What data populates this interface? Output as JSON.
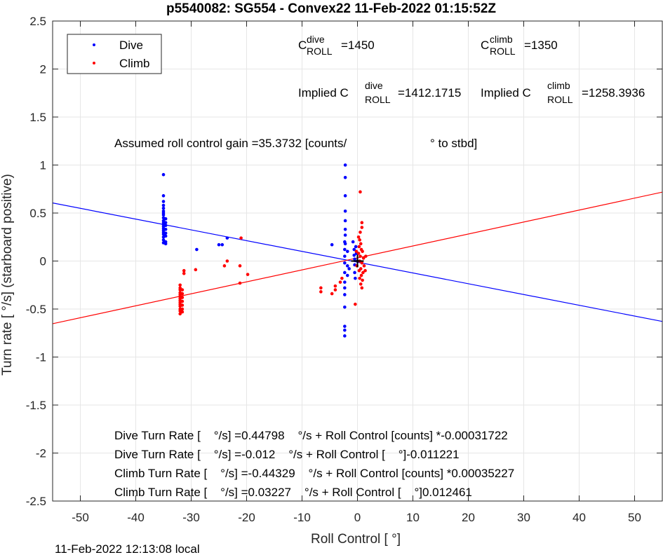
{
  "chart_data": {
    "type": "scatter",
    "title": "p5540082: SG554 - Convex22 11-Feb-2022 01:15:52Z",
    "xlabel": "Roll Control [   °]",
    "ylabel": "Turn rate [   °/s] (starboard positive)",
    "xlim": [
      -55,
      55
    ],
    "ylim": [
      -2.5,
      2.5
    ],
    "xticks": [
      -50,
      -40,
      -30,
      -20,
      -10,
      0,
      10,
      20,
      30,
      40,
      50
    ],
    "yticks": [
      -2.5,
      -2,
      -1.5,
      -1,
      -0.5,
      0,
      0.5,
      1,
      1.5,
      2,
      2.5
    ],
    "xtick_labels": [
      "-50",
      "-40",
      "-30",
      "-20",
      "-10",
      "0",
      "10",
      "20",
      "30",
      "40",
      "50"
    ],
    "ytick_labels": [
      "-2.5",
      "-2",
      "-1.5",
      "-1",
      "-0.5",
      "0",
      "0.5",
      "1",
      "1.5",
      "2",
      "2.5"
    ],
    "grid": true,
    "legend_position": "top-left",
    "series": [
      {
        "name": "Dive",
        "color": "#0000ff",
        "points": [
          [
            -35,
            0.9
          ],
          [
            -35,
            0.68
          ],
          [
            -35,
            0.62
          ],
          [
            -35,
            0.58
          ],
          [
            -35,
            0.55
          ],
          [
            -35,
            0.52
          ],
          [
            -35,
            0.5
          ],
          [
            -35,
            0.48
          ],
          [
            -35,
            0.45
          ],
          [
            -35,
            0.42
          ],
          [
            -35,
            0.4
          ],
          [
            -35,
            0.38
          ],
          [
            -35,
            0.36
          ],
          [
            -35,
            0.34
          ],
          [
            -35,
            0.32
          ],
          [
            -35,
            0.3
          ],
          [
            -35,
            0.28
          ],
          [
            -35,
            0.25
          ],
          [
            -35,
            0.22
          ],
          [
            -35,
            0.19
          ],
          [
            -34.6,
            0.44
          ],
          [
            -34.6,
            0.4
          ],
          [
            -34.6,
            0.37
          ],
          [
            -34.6,
            0.33
          ],
          [
            -34.6,
            0.29
          ],
          [
            -34.6,
            0.26
          ],
          [
            -34.6,
            0.2
          ],
          [
            -34.6,
            0.18
          ],
          [
            -29,
            0.12
          ],
          [
            -25,
            0.17
          ],
          [
            -24.4,
            0.17
          ],
          [
            -23.5,
            0.24
          ],
          [
            -4.6,
            0.17
          ],
          [
            -2.3,
            0.2
          ],
          [
            -2.3,
            0.12
          ],
          [
            -2.3,
            0.05
          ],
          [
            -2.3,
            -0.02
          ],
          [
            -2.3,
            -0.12
          ],
          [
            -2.3,
            -0.22
          ],
          [
            -2.3,
            -0.28
          ],
          [
            -2.3,
            -0.35
          ],
          [
            -2.3,
            -0.48
          ],
          [
            -2.3,
            -0.68
          ],
          [
            -2.3,
            -0.72
          ],
          [
            -2.3,
            -0.78
          ],
          [
            -2.2,
            1.0
          ],
          [
            -2.2,
            0.87
          ],
          [
            -2.2,
            0.68
          ],
          [
            -2.2,
            0.52
          ],
          [
            -2.2,
            0.42
          ],
          [
            -2.2,
            0.33
          ],
          [
            -2.2,
            0.27
          ],
          [
            -2.2,
            0.18
          ],
          [
            -1.8,
            0.1
          ],
          [
            -1.8,
            -0.05
          ],
          [
            -1.8,
            -0.15
          ],
          [
            -1.5,
            -0.08
          ],
          [
            -0.8,
            0.2
          ],
          [
            -0.6,
            0.12
          ],
          [
            -0.6,
            0.06
          ],
          [
            -0.5,
            0.02
          ],
          [
            -0.5,
            -0.04
          ],
          [
            -0.5,
            -0.12
          ],
          [
            -0.4,
            -0.18
          ],
          [
            -0.3,
            0.15
          ],
          [
            -0.2,
            0.08
          ],
          [
            0,
            0.0
          ]
        ]
      },
      {
        "name": "Climb",
        "color": "#ff0000",
        "points": [
          [
            -32,
            -0.25
          ],
          [
            -32,
            -0.28
          ],
          [
            -32,
            -0.3
          ],
          [
            -32,
            -0.33
          ],
          [
            -32,
            -0.35
          ],
          [
            -32,
            -0.37
          ],
          [
            -32,
            -0.39
          ],
          [
            -32,
            -0.41
          ],
          [
            -32,
            -0.43
          ],
          [
            -32,
            -0.45
          ],
          [
            -32,
            -0.47
          ],
          [
            -32,
            -0.5
          ],
          [
            -32,
            -0.52
          ],
          [
            -32,
            -0.55
          ],
          [
            -31.6,
            -0.3
          ],
          [
            -31.6,
            -0.34
          ],
          [
            -31.6,
            -0.38
          ],
          [
            -31.6,
            -0.42
          ],
          [
            -31.6,
            -0.46
          ],
          [
            -31.6,
            -0.5
          ],
          [
            -31.6,
            -0.53
          ],
          [
            -31.3,
            -0.1
          ],
          [
            -31.3,
            -0.13
          ],
          [
            -29.2,
            -0.09
          ],
          [
            -24,
            -0.05
          ],
          [
            -23.5,
            0.0
          ],
          [
            -21.2,
            -0.05
          ],
          [
            -21.2,
            -0.23
          ],
          [
            -19.8,
            -0.14
          ],
          [
            -21,
            0.24
          ],
          [
            -6.6,
            -0.28
          ],
          [
            -6.6,
            -0.32
          ],
          [
            -4.6,
            -0.34
          ],
          [
            -4,
            -0.26
          ],
          [
            -4,
            -0.3
          ],
          [
            -3.1,
            -0.22
          ],
          [
            -2.8,
            -0.18
          ],
          [
            0.5,
            0.72
          ],
          [
            0.8,
            0.4
          ],
          [
            0.8,
            0.35
          ],
          [
            0.5,
            0.3
          ],
          [
            0.2,
            0.25
          ],
          [
            0.4,
            0.22
          ],
          [
            0.6,
            0.18
          ],
          [
            0.3,
            0.15
          ],
          [
            0.7,
            0.12
          ],
          [
            0.9,
            0.1
          ],
          [
            0.2,
            0.08
          ],
          [
            0.5,
            0.05
          ],
          [
            1.1,
            0.03
          ],
          [
            0.4,
            0.0
          ],
          [
            0.8,
            -0.02
          ],
          [
            1.2,
            -0.05
          ],
          [
            0.6,
            -0.08
          ],
          [
            0.3,
            -0.1
          ],
          [
            1.0,
            -0.12
          ],
          [
            0.7,
            -0.15
          ],
          [
            0.4,
            -0.18
          ],
          [
            0.9,
            -0.2
          ],
          [
            0.6,
            -0.24
          ],
          [
            0.8,
            -0.28
          ],
          [
            -0.4,
            -0.45
          ],
          [
            1.5,
            0.05
          ],
          [
            1.4,
            -0.1
          ],
          [
            -0.2,
            0.1
          ],
          [
            -0.1,
            -0.05
          ]
        ]
      }
    ],
    "fit_lines": [
      {
        "name": "Dive fit",
        "color": "#0000ff",
        "intercept": -0.012,
        "slope": -0.011221
      },
      {
        "name": "Climb fit",
        "color": "#ff0000",
        "intercept": 0.03227,
        "slope": 0.012461
      }
    ],
    "marker": {
      "x": 0,
      "y": 0,
      "symbol": "+"
    }
  },
  "legend": {
    "dive": "Dive",
    "climb": "Climb"
  },
  "annotations": {
    "c_dive_main": "C",
    "c_dive_sup": "dive",
    "c_dive_sub": "ROLL",
    "c_dive_val": "=1450",
    "c_climb_main": "C",
    "c_climb_sup": "climb",
    "c_climb_sub": "ROLL",
    "c_climb_val": "=1350",
    "imp_dive_main": "Implied C",
    "imp_dive_sup": "dive",
    "imp_dive_sub": "ROLL",
    "imp_dive_val": "=1412.1715",
    "imp_climb_main": "Implied C",
    "imp_climb_sup": "climb",
    "imp_climb_sub": "ROLL",
    "imp_climb_val": "=1258.3936",
    "gain_a": "Assumed roll control gain =35.3732 [counts/",
    "gain_b": "° to stbd]",
    "eq1": "Dive Turn Rate [    °/s] =0.44798    °/s + Roll Control [counts] *-0.00031722",
    "eq2": "Dive Turn Rate [    °/s] =-0.012    °/s + Roll Control [    °]-0.011221",
    "eq3": "Climb Turn Rate [    °/s] =-0.44329    °/s + Roll Control [counts] *0.00035227",
    "eq4": "Climb Turn Rate [    °/s] =0.03227    °/s + Roll Control [    °]0.012461"
  },
  "footer": "11-Feb-2022 12:13:08 local"
}
